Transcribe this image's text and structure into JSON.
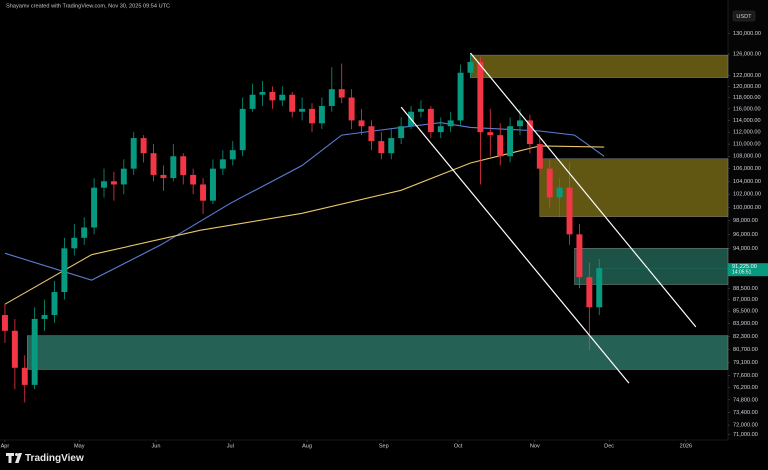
{
  "header": {
    "text": "Shayamv created with TradingView.com, Nov 30, 2025 09:54 UTC",
    "currency": "USDT"
  },
  "footer": {
    "brand": "TradingView"
  },
  "chart_data": {
    "type": "candlestick",
    "log_scale": true,
    "grid": false,
    "up_color": "#089981",
    "down_color": "#f23645",
    "xlim": [
      -2,
      292
    ],
    "xticks": [
      {
        "value": 0,
        "label": "Apr"
      },
      {
        "value": 30,
        "label": "May"
      },
      {
        "value": 61,
        "label": "Jun"
      },
      {
        "value": 91,
        "label": "Jul"
      },
      {
        "value": 122,
        "label": "Aug"
      },
      {
        "value": 153,
        "label": "Sep"
      },
      {
        "value": 183,
        "label": "Oct"
      },
      {
        "value": 214,
        "label": "Nov"
      },
      {
        "value": 244,
        "label": "Dec"
      },
      {
        "value": 275,
        "label": "2026"
      }
    ],
    "ylim": [
      70400,
      136700
    ],
    "yticks": [
      {
        "value": 130000,
        "label": "130,000.00"
      },
      {
        "value": 126000,
        "label": "126,000.00"
      },
      {
        "value": 122000,
        "label": "122,000.00"
      },
      {
        "value": 120000,
        "label": "120,000.00"
      },
      {
        "value": 118000,
        "label": "118,000.00"
      },
      {
        "value": 116000,
        "label": "116,000.00"
      },
      {
        "value": 114000,
        "label": "114,000.00"
      },
      {
        "value": 112000,
        "label": "112,000.00"
      },
      {
        "value": 110000,
        "label": "110,000.00"
      },
      {
        "value": 108000,
        "label": "108,000.00"
      },
      {
        "value": 106000,
        "label": "106,000.00"
      },
      {
        "value": 104000,
        "label": "104,000.00"
      },
      {
        "value": 102000,
        "label": "102,000.00"
      },
      {
        "value": 100000,
        "label": "100,000.00"
      },
      {
        "value": 98000,
        "label": "98,000.00"
      },
      {
        "value": 96000,
        "label": "96,000.00"
      },
      {
        "value": 94000,
        "label": "94,000.00"
      },
      {
        "value": 88500,
        "label": "88,500.00"
      },
      {
        "value": 87000,
        "label": "87,000.00"
      },
      {
        "value": 85500,
        "label": "85,500.00"
      },
      {
        "value": 83900,
        "label": "83,900.00"
      },
      {
        "value": 82300,
        "label": "82,300.00"
      },
      {
        "value": 80700,
        "label": "80,700.00"
      },
      {
        "value": 79100,
        "label": "79,100.00"
      },
      {
        "value": 77600,
        "label": "77,600.00"
      },
      {
        "value": 76200,
        "label": "76,200.00"
      },
      {
        "value": 74800,
        "label": "74,800.00"
      },
      {
        "value": 73400,
        "label": "73,400.00"
      },
      {
        "value": 72000,
        "label": "72,000.00"
      },
      {
        "value": 71000,
        "label": "71,000.00"
      }
    ],
    "x": [
      0,
      4,
      8,
      12,
      16,
      20,
      24,
      28,
      32,
      36,
      40,
      44,
      48,
      52,
      56,
      60,
      64,
      68,
      72,
      76,
      80,
      84,
      88,
      92,
      96,
      100,
      104,
      108,
      112,
      116,
      120,
      124,
      128,
      132,
      136,
      140,
      144,
      148,
      152,
      156,
      160,
      164,
      168,
      172,
      176,
      180,
      184,
      188,
      192,
      196,
      200,
      204,
      208,
      212,
      216,
      220,
      224,
      228,
      232,
      236,
      240
    ],
    "open": [
      85000,
      83000,
      78500,
      76500,
      84500,
      85000,
      88000,
      94000,
      95500,
      97000,
      103000,
      104000,
      103500,
      106000,
      111000,
      108500,
      105000,
      104500,
      108000,
      105000,
      103500,
      101000,
      106000,
      107500,
      109000,
      116000,
      118500,
      119000,
      117500,
      118500,
      115500,
      116000,
      113500,
      116500,
      119500,
      118000,
      114000,
      113000,
      110500,
      108500,
      111000,
      113000,
      115500,
      116000,
      112000,
      113000,
      114000,
      122500,
      124500,
      112000,
      111500,
      108000,
      113000,
      114000,
      110000,
      106000,
      101500,
      103000,
      96000,
      90000,
      86000
    ],
    "high": [
      86500,
      84500,
      80000,
      86000,
      87000,
      89500,
      95500,
      97500,
      98500,
      104500,
      106000,
      105500,
      107500,
      112000,
      111500,
      110000,
      106500,
      110000,
      108500,
      106000,
      104500,
      107500,
      109000,
      110500,
      118000,
      120500,
      121000,
      120000,
      120000,
      119000,
      118000,
      117000,
      118000,
      123500,
      124200,
      119500,
      116000,
      114000,
      112000,
      112500,
      114500,
      116500,
      117500,
      116500,
      114500,
      115500,
      124000,
      126200,
      125500,
      116000,
      113500,
      114500,
      116000,
      115000,
      111500,
      107500,
      104500,
      107000,
      97500,
      92000,
      92500
    ],
    "low": [
      81500,
      76000,
      74500,
      76000,
      83000,
      84000,
      87000,
      93000,
      94500,
      96000,
      101500,
      101000,
      102000,
      105000,
      107000,
      104000,
      102500,
      104000,
      103500,
      102000,
      99000,
      100500,
      105000,
      106500,
      108000,
      115500,
      116500,
      116000,
      116500,
      114500,
      114000,
      112000,
      112500,
      115500,
      117000,
      112500,
      111500,
      109000,
      107500,
      107500,
      110000,
      112500,
      114500,
      111000,
      111000,
      112000,
      113000,
      121500,
      103500,
      108000,
      106500,
      107000,
      111500,
      108500,
      105000,
      100000,
      98500,
      94500,
      88500,
      80600,
      85000
    ],
    "close": [
      83000,
      78500,
      76500,
      84500,
      85000,
      88000,
      94000,
      95500,
      97000,
      103000,
      104000,
      103500,
      106000,
      111000,
      108500,
      105000,
      104500,
      108000,
      105000,
      103500,
      101000,
      106000,
      107500,
      109000,
      116000,
      118500,
      119000,
      117500,
      118500,
      115500,
      116000,
      113500,
      116500,
      119500,
      118000,
      114000,
      113000,
      110500,
      108500,
      111000,
      113000,
      115500,
      116000,
      112000,
      113000,
      114000,
      122500,
      124500,
      112000,
      111500,
      108000,
      113000,
      114000,
      110000,
      106000,
      101500,
      103000,
      96000,
      90000,
      86000,
      91225
    ],
    "last_price": {
      "value": 91225,
      "label": "91,225.00",
      "countdown": "14:05:51",
      "color": "#089981"
    },
    "lines": [
      {
        "color": "#5b7fd6",
        "x": [
          0,
          35,
          63,
          91,
          120,
          136,
          160,
          176,
          188,
          216,
          230,
          242
        ],
        "values": [
          93300,
          89600,
          94500,
          100600,
          106500,
          111500,
          112800,
          113600,
          112800,
          112200,
          111500,
          108000
        ]
      },
      {
        "color": "#e8c56a",
        "x": [
          0,
          35,
          79,
          120,
          160,
          188,
          216,
          242
        ],
        "values": [
          86400,
          93100,
          96600,
          99100,
          102600,
          106900,
          109700,
          109500
        ]
      }
    ],
    "zones": [
      {
        "x_start": 188,
        "y": [
          121600,
          125800
        ],
        "color": "#6b5f14"
      },
      {
        "x_start": 216,
        "y": [
          98600,
          107600
        ],
        "color": "#6b5f14"
      },
      {
        "x_start": 230,
        "y": [
          89000,
          94000
        ],
        "color": "#1f5c4e"
      },
      {
        "x_start": 9,
        "y": [
          78300,
          82400
        ],
        "color": "#2a6b5e"
      }
    ],
    "trendlines": [
      {
        "x": [
          188,
          279
        ],
        "y": [
          126200,
          83500
        ],
        "color": "#ffffff"
      },
      {
        "x": [
          160,
          252
        ],
        "y": [
          116300,
          76700
        ],
        "color": "#ffffff"
      }
    ]
  }
}
